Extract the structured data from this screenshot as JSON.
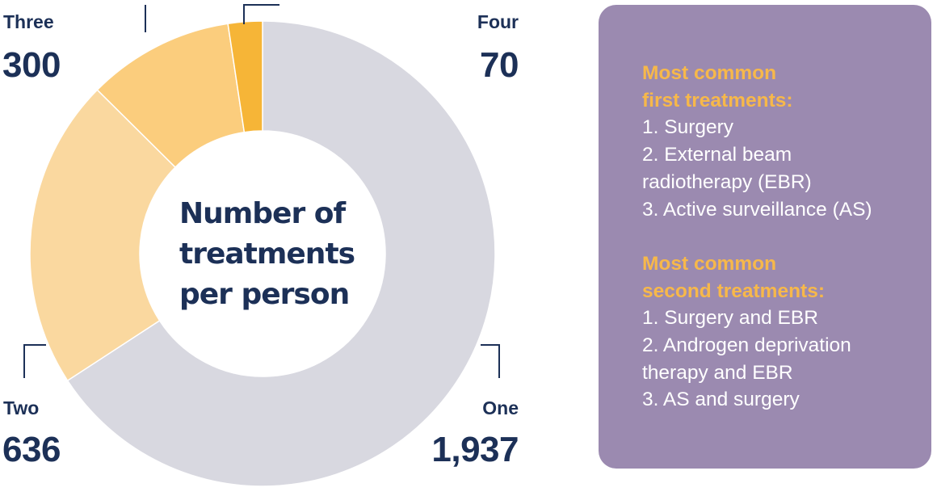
{
  "chart_data": {
    "type": "pie",
    "title": "Number of treatments per person",
    "title_lines": [
      "Number of",
      "treatments",
      "per person"
    ],
    "slices": [
      {
        "label": "One",
        "value": 1937,
        "value_label": "1,937",
        "color": "#d8d8e0"
      },
      {
        "label": "Two",
        "value": 636,
        "value_label": "636",
        "color": "#fad89f"
      },
      {
        "label": "Three",
        "value": 300,
        "value_label": "300",
        "color": "#fbcd7d"
      },
      {
        "label": "Four",
        "value": 70,
        "value_label": "70",
        "color": "#f6b537"
      }
    ],
    "start": "top",
    "direction": "clockwise",
    "style": "donut"
  },
  "colors": {
    "text_dark": "#1c3057",
    "panel_bg": "#9b8ab0",
    "panel_heading": "#f7b84a",
    "leader_line": "#1c3057"
  },
  "panel": {
    "first": {
      "heading": [
        "Most common",
        "first treatments:"
      ],
      "items": [
        "1. Surgery",
        "2. External beam",
        "radiotherapy (EBR)",
        "3. Active surveillance (AS)"
      ]
    },
    "second": {
      "heading": [
        "Most common",
        "second treatments:"
      ],
      "items": [
        "1. Surgery and EBR",
        "2. Androgen deprivation",
        "therapy and EBR",
        "3. AS and surgery"
      ]
    }
  }
}
